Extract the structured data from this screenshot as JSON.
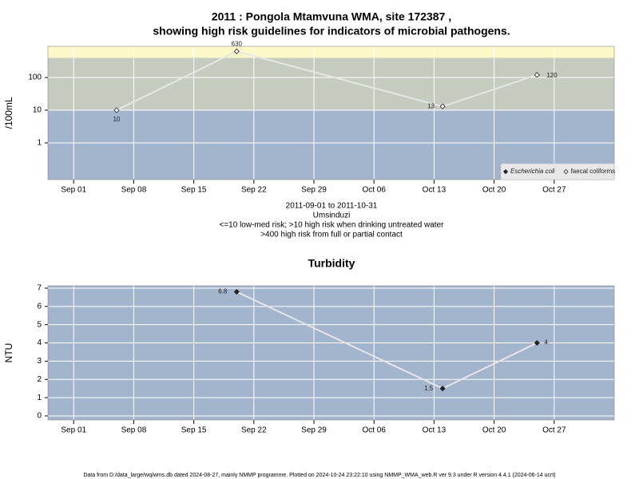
{
  "chart_data": [
    {
      "type": "line",
      "title": [
        "2011 : Pongola Mtamvuna WMA, site 172387 ,",
        "showing high risk guidelines for indicators of microbial pathogens."
      ],
      "ylabel": "/100mL",
      "log_scale": true,
      "xlim": [
        "2011-08-29",
        "2011-11-03"
      ],
      "xticks": [
        {
          "value": "2011-09-01",
          "label": "Sep 01"
        },
        {
          "value": "2011-09-08",
          "label": "Sep 08"
        },
        {
          "value": "2011-09-15",
          "label": "Sep 15"
        },
        {
          "value": "2011-09-22",
          "label": "Sep 22"
        },
        {
          "value": "2011-09-29",
          "label": "Sep 29"
        },
        {
          "value": "2011-10-06",
          "label": "Oct 06"
        },
        {
          "value": "2011-10-13",
          "label": "Oct 13"
        },
        {
          "value": "2011-10-20",
          "label": "Oct 20"
        },
        {
          "value": "2011-10-27",
          "label": "Oct 27"
        }
      ],
      "ylim": [
        0.075,
        900
      ],
      "yticks": [
        1,
        10,
        100
      ],
      "grid": true,
      "bands": {
        "limits": [
          10,
          400
        ],
        "colors": [
          "#a3b4cd",
          "#c4cbbf",
          "#fdf8c8"
        ]
      },
      "x": [
        "2011-09-06",
        "2011-09-20",
        "2011-10-14",
        "2011-10-25"
      ],
      "series": [
        {
          "name": "Escherichia coli",
          "color": "#222222",
          "marker": "filled",
          "values": [
            null,
            null,
            null,
            null
          ]
        },
        {
          "name": "faecal coliforms",
          "color": "#e6e6e6",
          "marker": "hollow",
          "values": [
            10,
            630,
            13,
            120
          ]
        }
      ],
      "legend": "bottom-right",
      "notes": [
        "2011-09-01 to 2011-10-31",
        "Umsinduzi",
        "<=10 low-med risk; >10 high risk when drinking untreated water",
        ">400 high risk from full or partial contact"
      ]
    },
    {
      "type": "line",
      "title": [
        "Turbidity"
      ],
      "ylabel": "NTU",
      "xlim": [
        "2011-08-29",
        "2011-11-03"
      ],
      "xticks": [
        {
          "value": "2011-09-01",
          "label": "Sep 01"
        },
        {
          "value": "2011-09-08",
          "label": "Sep 08"
        },
        {
          "value": "2011-09-15",
          "label": "Sep 15"
        },
        {
          "value": "2011-09-22",
          "label": "Sep 22"
        },
        {
          "value": "2011-09-29",
          "label": "Sep 29"
        },
        {
          "value": "2011-10-06",
          "label": "Oct 06"
        },
        {
          "value": "2011-10-13",
          "label": "Oct 13"
        },
        {
          "value": "2011-10-20",
          "label": "Oct 20"
        },
        {
          "value": "2011-10-27",
          "label": "Oct 27"
        }
      ],
      "ylim": [
        -0.22,
        7.13
      ],
      "yticks": [
        0,
        1,
        2,
        3,
        4,
        5,
        6,
        7
      ],
      "grid": true,
      "background": "#a3b4cd",
      "x": [
        "2011-09-20",
        "2011-10-14",
        "2011-10-25"
      ],
      "series": [
        {
          "name": "Turbidity",
          "color": "#e6e6e6",
          "marker": "filled",
          "values": [
            6.8,
            1.5,
            4
          ]
        }
      ]
    }
  ],
  "footer": "Data from D:/data_large/wq/wms.db dated 2024-08-27, mainly NMMP programme. Plotted on 2024-10-24 23:22:10 using NMMP_WMA_web.R ver 9.3 under R version 4.4.1 (2024-06-14 ucrt)"
}
